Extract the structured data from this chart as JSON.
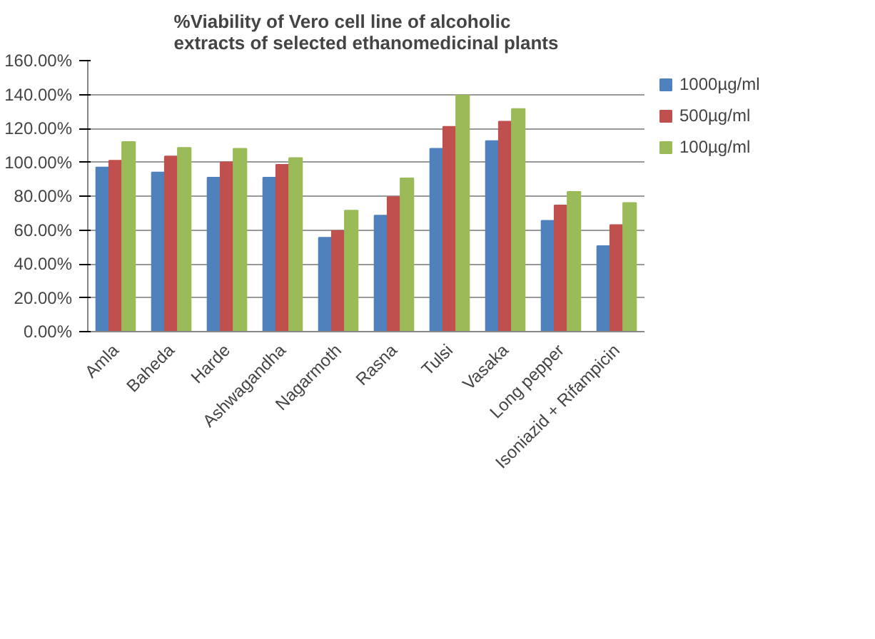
{
  "chart_data": {
    "type": "bar",
    "title": "%Viability of Vero cell line of alcoholic extracts of selected ethanomedicinal plants",
    "categories": [
      "Amla",
      "Baheda",
      "Harde",
      "Ashwagandha",
      "Nagarmoth",
      "Rasna",
      "Tulsi",
      "Vasaka",
      "Long pepper",
      "Isoniazid + Rifampicin"
    ],
    "series": [
      {
        "name": "1000µg/ml",
        "color": "#4f81bd",
        "values": [
          97,
          94,
          91,
          91,
          55.5,
          68.5,
          108,
          112.5,
          65.5,
          50.5
        ]
      },
      {
        "name": "500µg/ml",
        "color": "#c0504d",
        "values": [
          101,
          103.5,
          100,
          98.5,
          59.5,
          79.5,
          121,
          124,
          74.5,
          63
        ]
      },
      {
        "name": "100µg/ml",
        "color": "#9bbb59",
        "values": [
          112,
          108.5,
          108,
          102.5,
          71.5,
          90.5,
          139.5,
          131.5,
          82.5,
          76
        ]
      }
    ],
    "ylim": [
      0,
      160
    ],
    "yticks": [
      {
        "value": 0,
        "label": "0.00%"
      },
      {
        "value": 20,
        "label": "20.00%"
      },
      {
        "value": 40,
        "label": "40.00%"
      },
      {
        "value": 60,
        "label": "60.00%"
      },
      {
        "value": 80,
        "label": "80.00%"
      },
      {
        "value": 100,
        "label": "100.00%"
      },
      {
        "value": 120,
        "label": "120.00%"
      },
      {
        "value": 140,
        "label": "140.00%"
      },
      {
        "value": 160,
        "label": "160.00%"
      }
    ],
    "grid": "y",
    "legend": "top right"
  }
}
